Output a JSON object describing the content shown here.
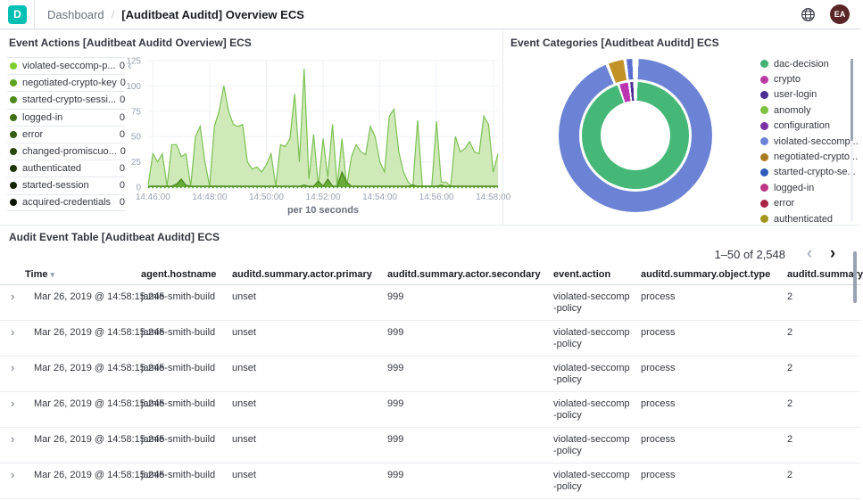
{
  "header": {
    "logo": "D",
    "breadcrumb": [
      "Dashboard",
      "[Auditbeat Auditd] Overview ECS"
    ],
    "separator": "/",
    "avatar": "EA"
  },
  "event_actions": {
    "title": "Event Actions [Auditbeat Auditd Overview] ECS",
    "collapse_icon": "‹",
    "legend": [
      {
        "label": "violated-seccomp-p...",
        "value": "0",
        "color": "#7ccd2f"
      },
      {
        "label": "negotiated-crypto-key",
        "value": "0",
        "color": "#5da321"
      },
      {
        "label": "started-crypto-sessi...",
        "value": "0",
        "color": "#4d8a1d"
      },
      {
        "label": "logged-in",
        "value": "0",
        "color": "#3f7016"
      },
      {
        "label": "error",
        "value": "0",
        "color": "#345c12"
      },
      {
        "label": "changed-promiscuo...",
        "value": "0",
        "color": "#2a480d"
      },
      {
        "label": "authenticated",
        "value": "0",
        "color": "#1f3409"
      },
      {
        "label": "started-session",
        "value": "0",
        "color": "#152304"
      },
      {
        "label": "acquired-credentials",
        "value": "0",
        "color": "#0b1202"
      }
    ],
    "chart_data": {
      "type": "area",
      "xlabel": "per 10 seconds",
      "ylim": [
        0,
        125
      ],
      "yticks": [
        0,
        25,
        50,
        75,
        100,
        125
      ],
      "xtick_labels": [
        "14:46:00",
        "14:48:00",
        "14:50:00",
        "14:52:00",
        "14:54:00",
        "14:56:00",
        "14:58:00"
      ],
      "xtick_indices": [
        1,
        13,
        25,
        37,
        49,
        61,
        73
      ],
      "series": [
        {
          "name": "violated-seccomp-policy",
          "fill": "#cbe7b1",
          "fill_opacity": 0.9,
          "stroke": "#7cc153",
          "values": [
            2,
            33,
            25,
            33,
            1,
            42,
            42,
            30,
            33,
            1,
            50,
            60,
            25,
            1,
            60,
            75,
            100,
            75,
            62,
            60,
            62,
            25,
            18,
            20,
            15,
            22,
            33,
            1,
            42,
            40,
            48,
            92,
            25,
            117,
            8,
            52,
            1,
            48,
            10,
            62,
            1,
            48,
            1,
            30,
            42,
            35,
            32,
            60,
            50,
            25,
            15,
            70,
            77,
            35,
            15,
            5,
            1,
            66,
            1,
            1,
            1,
            65,
            5,
            5,
            1,
            50,
            35,
            38,
            45,
            35,
            33,
            70,
            62,
            15,
            33
          ]
        },
        {
          "name": "negotiated-crypto-key",
          "fill": "#63a832",
          "fill_opacity": 0.95,
          "stroke": "#47851b",
          "values": [
            1,
            1,
            1,
            1,
            1,
            1,
            3,
            8,
            2,
            1,
            1,
            1,
            1,
            1,
            1,
            1,
            1,
            1,
            1,
            1,
            1,
            1,
            1,
            1,
            1,
            1,
            1,
            1,
            1,
            1,
            1,
            1,
            1,
            2,
            1,
            1,
            6,
            1,
            8,
            1,
            1,
            15,
            5,
            1,
            1,
            1,
            1,
            1,
            1,
            1,
            1,
            1,
            1,
            1,
            1,
            1,
            2,
            1,
            1,
            1,
            1,
            1,
            2,
            1,
            1,
            1,
            1,
            1,
            1,
            1,
            1,
            1,
            1,
            1,
            1
          ]
        }
      ]
    }
  },
  "event_categories": {
    "title": "Event Categories [Auditbeat Auditd] ECS",
    "legend": [
      {
        "label": "dac-decision",
        "color": "#41b274"
      },
      {
        "label": "crypto",
        "color": "#bb3aa2"
      },
      {
        "label": "user-login",
        "color": "#4b2e91"
      },
      {
        "label": "anomoly",
        "color": "#7cc140"
      },
      {
        "label": "configuration",
        "color": "#7a30a5"
      },
      {
        "label": "violated-seccomp...",
        "color": "#6c83d5"
      },
      {
        "label": "negotiated-crypto...",
        "color": "#aa7a1e"
      },
      {
        "label": "started-crypto-se...",
        "color": "#2d5cba"
      },
      {
        "label": "logged-in",
        "color": "#bd3787"
      },
      {
        "label": "error",
        "color": "#a82545"
      },
      {
        "label": "authenticated",
        "color": "#a3941f"
      }
    ],
    "chart_data": {
      "type": "pie",
      "rings": {
        "outer": [
          {
            "label": "violated-seccomp-policy",
            "color": "#6c83d5",
            "value": 94.0
          },
          {
            "label": "negotiated-crypto-key",
            "color": "#c29227",
            "value": 3.2
          },
          {
            "label": "started-crypto-session",
            "color": "#5a6fd0",
            "value": 1.2
          }
        ],
        "inner": [
          {
            "label": "dac-decision",
            "color": "#45b877",
            "value": 94.5
          },
          {
            "label": "crypto",
            "color": "#bc35b0",
            "value": 2.6
          },
          {
            "label": "user-login",
            "color": "#4a2c96",
            "value": 0.9
          }
        ]
      },
      "legend_position": "right"
    }
  },
  "audit_table": {
    "title": "Audit Event Table [Auditbeat Auditd] ECS",
    "pagination": {
      "text": "1–50 of 2,548",
      "prev_icon": "‹",
      "next_icon": "›"
    },
    "expand_icon": "›",
    "sort_caret": "▾",
    "columns": [
      {
        "label": "Time",
        "sorted": true
      },
      {
        "label": "agent.hostname"
      },
      {
        "label": "auditd.summary.actor.primary"
      },
      {
        "label": "auditd.summary.actor.secondary"
      },
      {
        "label": "event.action"
      },
      {
        "label": "auditd.summary.object.type"
      },
      {
        "label": "auditd.summary"
      }
    ],
    "rows": [
      {
        "time": "Mar 26, 2019 @ 14:58:15.245",
        "hostname": "jamie-smith-build",
        "primary": "unset",
        "secondary": "999",
        "action": "violated-seccomp-policy",
        "object_type": "process",
        "summary": "2"
      },
      {
        "time": "Mar 26, 2019 @ 14:58:15.245",
        "hostname": "jamie-smith-build",
        "primary": "unset",
        "secondary": "999",
        "action": "violated-seccomp-policy",
        "object_type": "process",
        "summary": "2"
      },
      {
        "time": "Mar 26, 2019 @ 14:58:15.245",
        "hostname": "jamie-smith-build",
        "primary": "unset",
        "secondary": "999",
        "action": "violated-seccomp-policy",
        "object_type": "process",
        "summary": "2"
      },
      {
        "time": "Mar 26, 2019 @ 14:58:15.245",
        "hostname": "jamie-smith-build",
        "primary": "unset",
        "secondary": "999",
        "action": "violated-seccomp-policy",
        "object_type": "process",
        "summary": "2"
      },
      {
        "time": "Mar 26, 2019 @ 14:58:15.245",
        "hostname": "jamie-smith-build",
        "primary": "unset",
        "secondary": "999",
        "action": "violated-seccomp-policy",
        "object_type": "process",
        "summary": "2"
      },
      {
        "time": "Mar 26, 2019 @ 14:58:15.245",
        "hostname": "jamie-smith-build",
        "primary": "unset",
        "secondary": "999",
        "action": "violated-seccomp-policy",
        "object_type": "process",
        "summary": "2"
      }
    ]
  }
}
